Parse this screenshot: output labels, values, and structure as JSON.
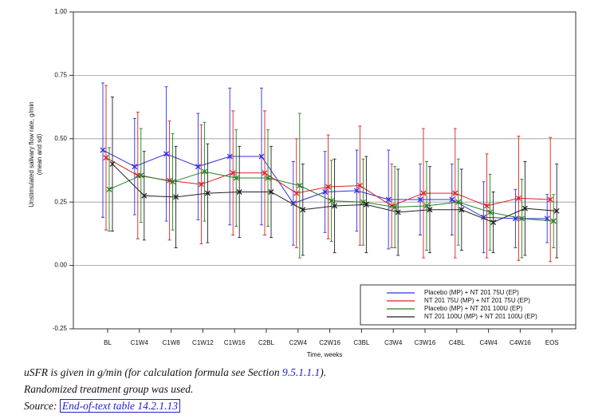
{
  "chart_data": {
    "type": "errorbar-line",
    "xlabel": "Time, weeks",
    "ylabel": [
      "Unstimulated salivary flow rate, g/min",
      "(mean and sd)"
    ],
    "categories": [
      "BL",
      "C1W4",
      "C1W8",
      "C1W12",
      "C1W16",
      "C2BL",
      "C2W4",
      "C2W16",
      "C3BL",
      "C3W4",
      "C3W16",
      "C4BL",
      "C4W4",
      "C4W16",
      "EOS"
    ],
    "ylim": [
      -0.25,
      1.0
    ],
    "yticks": [
      {
        "value": 1.0,
        "label": "1.00"
      },
      {
        "value": 0.75,
        "label": "0.75"
      },
      {
        "value": 0.5,
        "label": "0.50"
      },
      {
        "value": 0.25,
        "label": "0.25"
      },
      {
        "value": 0,
        "label": "0.00"
      },
      {
        "value": -0.25,
        "label": "-0.25"
      }
    ],
    "grid": true,
    "legend": "lower right",
    "series": [
      {
        "name": "Placebo (MP) + NT 201 75U (EP)",
        "color": "#3030e0",
        "values": [
          0.455,
          0.39,
          0.44,
          0.39,
          0.43,
          0.43,
          0.245,
          0.29,
          0.295,
          0.26,
          0.26,
          0.26,
          0.19,
          0.185,
          0.185
        ],
        "errors": [
          0.265,
          0.19,
          0.265,
          0.21,
          0.27,
          0.27,
          0.165,
          0.16,
          0.16,
          0.195,
          0.14,
          0.14,
          0.14,
          0.115,
          0.095
        ]
      },
      {
        "name": "NT 201 75U (MP) + NT 201 75U (EP)",
        "color": "#e02020",
        "values": [
          0.425,
          0.355,
          0.335,
          0.32,
          0.365,
          0.365,
          0.285,
          0.31,
          0.315,
          0.235,
          0.285,
          0.285,
          0.235,
          0.265,
          0.26
        ],
        "errors": [
          0.285,
          0.25,
          0.235,
          0.235,
          0.245,
          0.245,
          0.215,
          0.205,
          0.235,
          0.165,
          0.255,
          0.255,
          0.205,
          0.245,
          0.245
        ]
      },
      {
        "name": "Placebo (MP) + NT 201 100U (EP)",
        "color": "#208020",
        "values": [
          0.3,
          0.355,
          0.33,
          0.37,
          0.345,
          0.345,
          0.315,
          0.255,
          0.25,
          0.23,
          0.235,
          0.25,
          0.21,
          0.185,
          0.175
        ],
        "errors": [
          0.165,
          0.185,
          0.19,
          0.195,
          0.19,
          0.19,
          0.285,
          0.16,
          0.17,
          0.16,
          0.175,
          0.17,
          0.15,
          0.155,
          0.105
        ]
      },
      {
        "name": "NT 201 100U (MP) + NT 201 100U (EP)",
        "color": "#202020",
        "values": [
          0.4,
          0.275,
          0.27,
          0.285,
          0.29,
          0.29,
          0.22,
          0.235,
          0.24,
          0.21,
          0.22,
          0.22,
          0.17,
          0.225,
          0.215
        ],
        "errors": [
          0.265,
          0.175,
          0.2,
          0.195,
          0.18,
          0.18,
          0.18,
          0.185,
          0.19,
          0.17,
          0.17,
          0.16,
          0.12,
          0.185,
          0.185
        ]
      }
    ]
  },
  "notes": [
    [
      "uSFR is given in g/min (for calculation formula see Section ",
      "9.5.1.1.1",
      ")."
    ],
    [
      "Randomized treatment group was used."
    ],
    [
      "Source: ",
      "End-of-text table 14.2.1.13"
    ]
  ]
}
